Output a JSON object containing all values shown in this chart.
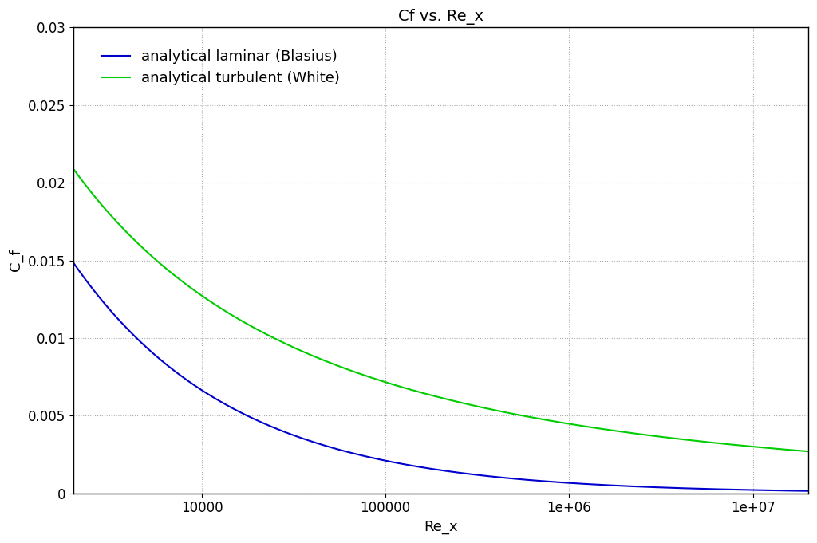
{
  "title": "Cf vs. Re_x",
  "xlabel": "Re_x",
  "ylabel": "C_f",
  "xmin": 2000,
  "xmax": 20000000.0,
  "ymin": 0,
  "ymax": 0.03,
  "legend_labels": [
    "analytical laminar (Blasius)",
    "analytical turbulent (White)"
  ],
  "line_colors": [
    "#0000cc",
    "#00cc00"
  ],
  "background_color": "#ffffff",
  "grid_color": "#aaaaaa",
  "title_fontsize": 14,
  "label_fontsize": 13,
  "tick_fontsize": 12,
  "xtick_positions": [
    10000,
    100000,
    1000000,
    10000000
  ],
  "xtick_labels": [
    "10000",
    "100000",
    "1e+06",
    "1e+07"
  ],
  "ytick_positions": [
    0,
    0.005,
    0.01,
    0.015,
    0.02,
    0.025,
    0.03
  ]
}
